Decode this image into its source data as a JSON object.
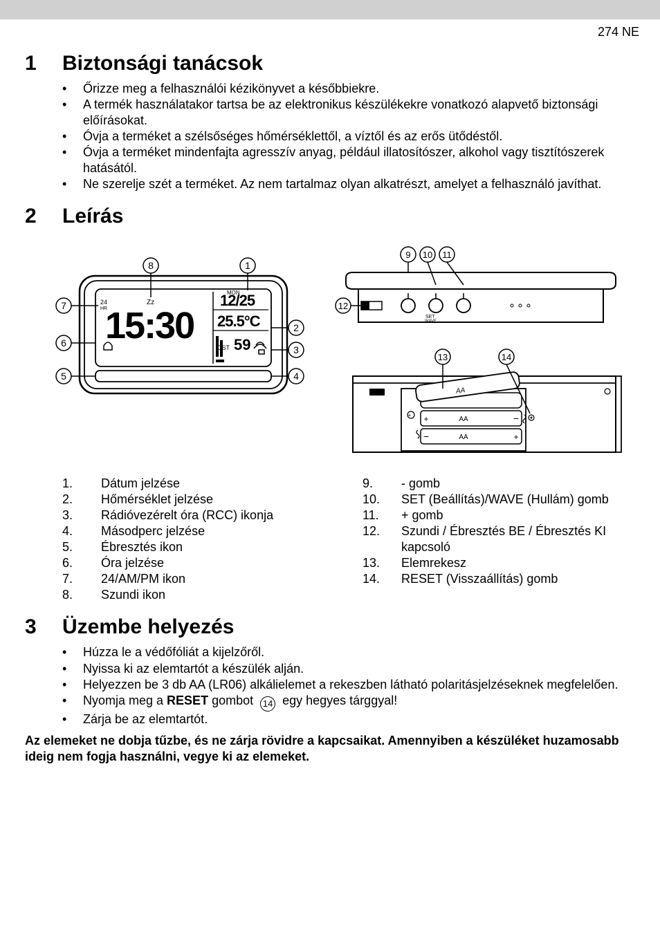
{
  "header": {
    "doc_code": "274 NE"
  },
  "sections": {
    "s1": {
      "num": "1",
      "title": "Biztonsági tanácsok"
    },
    "s2": {
      "num": "2",
      "title": "Leírás"
    },
    "s3": {
      "num": "3",
      "title": "Üzembe helyezés"
    }
  },
  "bullets1": [
    "Őrizze meg a felhasználói kézikönyvet a későbbiekre.",
    "A termék használatakor tartsa be az elektronikus készülékekre vonatkozó alapvető biztonsági előírásokat.",
    "Óvja a terméket a szélsőséges hőmérséklettől, a víztől és az erős ütődéstől.",
    "Óvja a terméket mindenfajta agresszív anyag, például illatosítószer, alkohol vagy tisztítószerek hatásától.",
    "Ne szerelje szét a terméket. Az nem tartalmaz olyan alkatrészt, amelyet a felhasználó javíthat."
  ],
  "legend_left": [
    {
      "n": "1.",
      "t": "Dátum jelzése"
    },
    {
      "n": "2.",
      "t": "Hőmérséklet jelzése"
    },
    {
      "n": "3.",
      "t": "Rádióvezérelt óra (RCC) ikonja"
    },
    {
      "n": "4.",
      "t": "Másodperc jelzése"
    },
    {
      "n": "5.",
      "t": "Ébresztés ikon"
    },
    {
      "n": "6.",
      "t": "Óra jelzése"
    },
    {
      "n": "7.",
      "t": "24/AM/PM ikon"
    },
    {
      "n": "8.",
      "t": "Szundi ikon"
    }
  ],
  "legend_right": [
    {
      "n": "9.",
      "t": "- gomb"
    },
    {
      "n": "10.",
      "t": "SET (Beállítás)/WAVE (Hullám) gomb"
    },
    {
      "n": "11.",
      "t": "+ gomb"
    },
    {
      "n": "12.",
      "t": "Szundi / Ébresztés BE / Ébresztés KI kapcsoló"
    },
    {
      "n": "13.",
      "t": "Elemrekesz"
    },
    {
      "n": "14.",
      "t": "RESET (Visszaállítás) gomb"
    }
  ],
  "bullets3": [
    "Húzza le a védőfóliát a kijelzőről.",
    "Nyissa ki az elemtartót a készülék alján.",
    "Helyezzen be 3 db AA (LR06) alkálielemet a rekeszben látható polaritásjelzéseknek megfelelően.",
    "Nyomja meg a RESET gombot (14) egy hegyes tárggyal!",
    "Zárja be az elemtartót."
  ],
  "bold_note": "Az elemeket ne dobja tűzbe, és ne zárja rövidre a kapcsaikat. Amennyiben a készüléket huzamosabb ideig nem fogja használni, vegye ki az elemeket.",
  "diagram_front": {
    "callouts": [
      "1",
      "2",
      "3",
      "4",
      "5",
      "6",
      "7",
      "8"
    ],
    "display_time": "15:30",
    "display_date": "12/25",
    "display_temp": "25.5°C",
    "display_sec": "59",
    "label_dst": "DST",
    "label_zz": "Zz",
    "label_24hr": "24HR",
    "label_mon": "MON"
  },
  "diagram_back": {
    "callouts": [
      "9",
      "10",
      "11",
      "12",
      "13",
      "14"
    ],
    "set_label": "SET",
    "wave_label": "WAVE",
    "aa": "AA",
    "plus": "+",
    "minus": "−"
  },
  "style": {
    "page_bg": "#ffffff",
    "topbar_bg": "#d0d0d0",
    "text_color": "#000000",
    "font_family": "Arial, Helvetica, sans-serif",
    "heading_fontsize_pt": 22,
    "body_fontsize_pt": 13,
    "circle_stroke": "#000000",
    "circle_stroke_width": 1.5,
    "diagram_stroke": "#000000",
    "diagram_stroke_width": 2
  }
}
